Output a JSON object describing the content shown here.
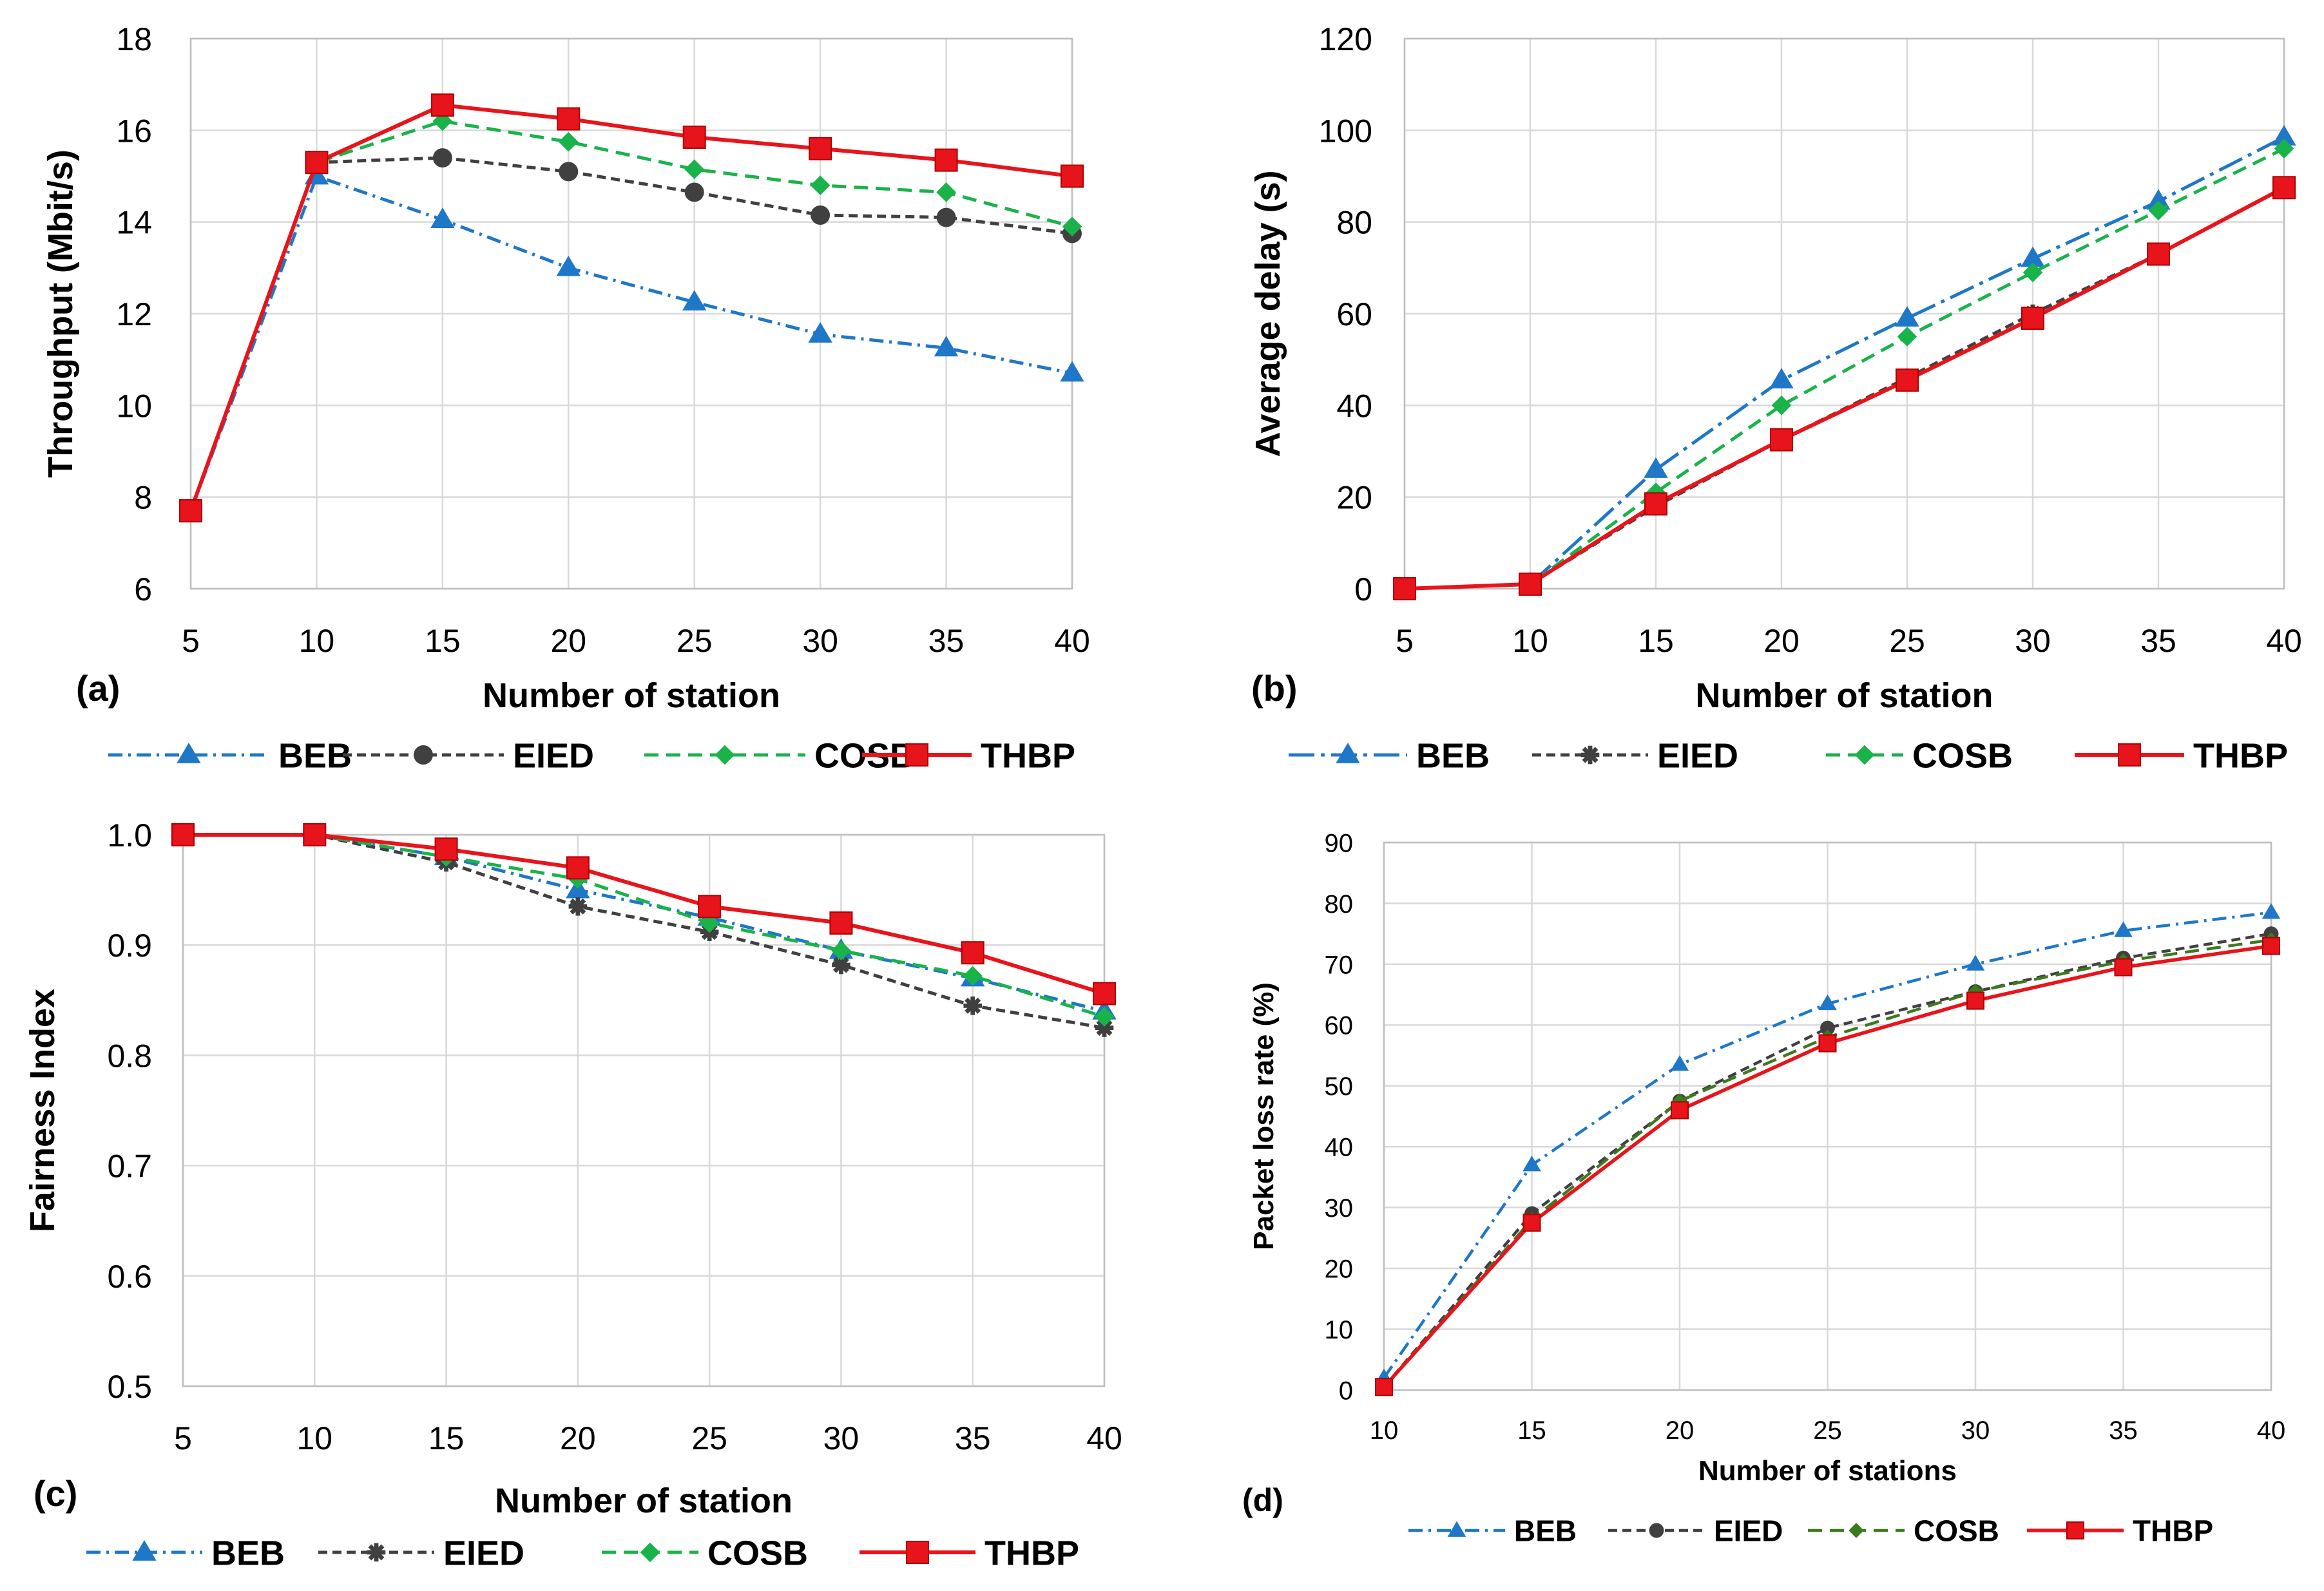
{
  "figure": {
    "charts": [
      {
        "id": "a",
        "panel_label": "(a)",
        "type": "line",
        "xlabel": "Number of station",
        "ylabel": "Throughput (Mbit/s)",
        "xlim": [
          5,
          40
        ],
        "ylim": [
          6,
          18
        ],
        "x_ticks": [
          "5",
          "10",
          "15",
          "20",
          "25",
          "30",
          "35",
          "40"
        ],
        "y_ticks": [
          "6",
          "8",
          "10",
          "12",
          "14",
          "16",
          "18"
        ],
        "x": [
          5,
          10,
          15,
          20,
          25,
          30,
          35,
          40
        ],
        "series": [
          {
            "name": "BEB",
            "values": [
              7.7,
              15.0,
              14.05,
              13.0,
              12.25,
              11.55,
              11.25,
              10.7
            ]
          },
          {
            "name": "EIED",
            "values": [
              7.7,
              15.3,
              15.4,
              15.1,
              14.65,
              14.15,
              14.1,
              13.75
            ]
          },
          {
            "name": "COSB",
            "values": [
              7.7,
              15.3,
              16.2,
              15.75,
              15.15,
              14.8,
              14.65,
              13.9
            ]
          },
          {
            "name": "THBP",
            "values": [
              7.7,
              15.3,
              16.55,
              16.25,
              15.85,
              15.6,
              15.35,
              15.0
            ]
          }
        ]
      },
      {
        "id": "b",
        "panel_label": "(b)",
        "type": "line",
        "xlabel": "Number of station",
        "ylabel": "Average delay (s)",
        "xlim": [
          5,
          40
        ],
        "ylim": [
          0,
          120
        ],
        "x_ticks": [
          "5",
          "10",
          "15",
          "20",
          "25",
          "30",
          "35",
          "40"
        ],
        "y_ticks": [
          "0",
          "20",
          "40",
          "60",
          "80",
          "100",
          "120"
        ],
        "x": [
          5,
          10,
          15,
          20,
          25,
          30,
          35,
          40
        ],
        "series": [
          {
            "name": "BEB",
            "values": [
              0,
              1,
              26,
              45.5,
              59,
              72,
              84.5,
              98.5
            ]
          },
          {
            "name": "EIED",
            "values": [
              0,
              1,
              18,
              32.5,
              46,
              60,
              73,
              87.5
            ]
          },
          {
            "name": "COSB",
            "values": [
              0,
              1,
              21,
              40,
              55,
              69,
              82.5,
              96
            ]
          },
          {
            "name": "THBP",
            "values": [
              0,
              1,
              18.5,
              32.5,
              45.5,
              59,
              73,
              87.5
            ]
          }
        ]
      },
      {
        "id": "c",
        "panel_label": "(c)",
        "type": "line",
        "xlabel": "Number of station",
        "ylabel": "Fairness Index",
        "xlim": [
          5,
          40
        ],
        "ylim": [
          0.5,
          1.0
        ],
        "x_ticks": [
          "5",
          "10",
          "15",
          "20",
          "25",
          "30",
          "35",
          "40"
        ],
        "y_ticks": [
          "0.5",
          "0.6",
          "0.7",
          "0.8",
          "0.9",
          "1.0"
        ],
        "x": [
          5,
          10,
          15,
          20,
          25,
          30,
          35,
          40
        ],
        "series": [
          {
            "name": "BEB",
            "values": [
              1.0,
              1.0,
              0.98,
              0.95,
              0.925,
              0.895,
              0.87,
              0.84
            ]
          },
          {
            "name": "EIED",
            "values": [
              1.0,
              1.0,
              0.975,
              0.935,
              0.912,
              0.882,
              0.845,
              0.825
            ]
          },
          {
            "name": "COSB",
            "values": [
              1.0,
              1.0,
              0.98,
              0.96,
              0.92,
              0.895,
              0.872,
              0.835
            ]
          },
          {
            "name": "THBP",
            "values": [
              1.0,
              1.0,
              0.987,
              0.97,
              0.935,
              0.92,
              0.893,
              0.856
            ]
          }
        ]
      },
      {
        "id": "d",
        "panel_label": "(d)",
        "type": "line",
        "xlabel": "Number of stations",
        "ylabel": "Packet loss rate (%)",
        "xlim": [
          10,
          40
        ],
        "ylim": [
          0,
          90
        ],
        "x_ticks": [
          "10",
          "15",
          "20",
          "25",
          "30",
          "35",
          "40"
        ],
        "y_ticks": [
          "0",
          "10",
          "20",
          "30",
          "40",
          "50",
          "60",
          "70",
          "80",
          "90"
        ],
        "x": [
          10,
          15,
          20,
          25,
          30,
          35,
          40
        ],
        "series": [
          {
            "name": "BEB",
            "values": [
              2,
              37,
              53.5,
              63.5,
              70,
              75.5,
              78.5
            ]
          },
          {
            "name": "EIED",
            "values": [
              0.5,
              29,
              47.5,
              59.5,
              65.5,
              71,
              75
            ]
          },
          {
            "name": "COSB",
            "values": [
              0.5,
              28,
              47.5,
              58,
              65.5,
              70.5,
              74
            ]
          },
          {
            "name": "THBP",
            "values": [
              0.5,
              27.5,
              46,
              57,
              64,
              69.5,
              73
            ]
          }
        ]
      }
    ]
  },
  "chart_data": [
    {
      "id": "a",
      "type": "line",
      "title": "(a)",
      "xlabel": "Number of station",
      "ylabel": "Throughput (Mbit/s)",
      "ylim": [
        6,
        18
      ]
    },
    {
      "id": "b",
      "type": "line",
      "title": "(b)",
      "xlabel": "Number of station",
      "ylabel": "Average delay (s)",
      "ylim": [
        0,
        120
      ]
    },
    {
      "id": "c",
      "type": "line",
      "title": "(c)",
      "xlabel": "Number of station",
      "ylabel": "Fairness Index",
      "ylim": [
        0.5,
        1.0
      ]
    },
    {
      "id": "d",
      "type": "line",
      "title": "(d)",
      "xlabel": "Number of stations",
      "ylabel": "Packet loss rate (%)",
      "ylim": [
        0,
        90
      ]
    }
  ],
  "styles": {
    "BEB": {
      "color": "#1F77C8"
    },
    "EIED": {
      "color": "#404040"
    },
    "COSB": {
      "color": "#19B34A"
    },
    "THBP": {
      "color": "#E8141B"
    },
    "COSB_d": {
      "color": "#3C7A1E"
    },
    "BEB_b_dash": "long-dash-dot",
    "grid": "#D9D9D9",
    "axis": "#BFBFBF"
  }
}
